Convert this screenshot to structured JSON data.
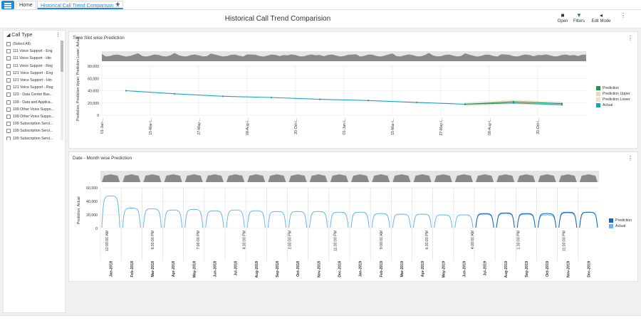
{
  "tabs": {
    "home": "Home",
    "active": "Historical Call Trend Comparison",
    "close": "✕",
    "add": "+"
  },
  "page": {
    "title": "Historical Call Trend Comparision"
  },
  "toolbar": {
    "open": "Open",
    "filters": "Filters",
    "edit_mode": "Edit Mode",
    "more": "⋮"
  },
  "filter_panel": {
    "title": "Call Type",
    "items": [
      "(Select All)",
      "111 Voice Support - Eng",
      "111 Voice Support - Hin",
      "111 Voice Support - Reg",
      "121 Voice Support - Eng",
      "121 Voice Support - Hin",
      "121 Voice Support - Reg",
      "123 - Data Center Bas...",
      "199 - Data and Applica...",
      "199 Other Voice Suppo...",
      "199 Other Voice Suppo...",
      "199 Subscription Servi...",
      "199 Subscription Servi...",
      "199 Subscription Servi..."
    ]
  },
  "chart_data": [
    {
      "type": "line",
      "title": "Time Slot wise Prediction",
      "ylabel": "Prediction, Prediction Upper, Prediction Lower, Actual",
      "ylim": [
        0,
        80000
      ],
      "yticks": [
        "80,000",
        "60,000",
        "40,000",
        "20,000",
        "0"
      ],
      "x": [
        "01-Jan-...",
        "15-Mar-l...",
        "27-May-...",
        "08-Aug-l...",
        "20-Oct-l...",
        "01-Jan-l...",
        "15-Mar-l...",
        "27-May-l...",
        "08-Aug-l...",
        "20-Oct-l..."
      ],
      "series": [
        {
          "name": "Prediction",
          "color": "#1a9850",
          "values": [
            null,
            null,
            null,
            null,
            null,
            null,
            null,
            18000,
            22000,
            19000
          ]
        },
        {
          "name": "Prediction Upper",
          "color": "#e8d9b5",
          "values": [
            null,
            null,
            null,
            null,
            null,
            null,
            null,
            21000,
            25000,
            22000
          ]
        },
        {
          "name": "Prediction Lower",
          "color": "#eee0c4",
          "values": [
            null,
            null,
            null,
            null,
            null,
            null,
            null,
            15000,
            18000,
            16000
          ]
        },
        {
          "name": "Actual",
          "color": "#17a2c8",
          "values": [
            40000,
            35000,
            31000,
            29000,
            26000,
            24000,
            21000,
            18000,
            20000,
            17000
          ]
        }
      ]
    },
    {
      "type": "line",
      "title": "Date - Month wise Prediction",
      "ylabel": "Prediction, Actual",
      "ylim": [
        0,
        60000
      ],
      "yticks": [
        "60,000",
        "40,000",
        "20,000",
        "0"
      ],
      "time_labels": [
        "12:00:00 AM",
        "9:30:00 PM",
        "7:00:00 PM",
        "4:30:00 PM",
        "2:00:00 PM",
        "11:30:00 PM",
        "9:00:00 AM",
        "6:30:00 PM",
        "4:00:00 AM",
        "1:30:00 PM",
        "11:00:00 PM"
      ],
      "categories": [
        "Jan-2018",
        "Feb-2018",
        "Mar-2018",
        "Apr-2018",
        "May-2018",
        "Jun-2018",
        "Jul-2018",
        "Aug-2018",
        "Sep-2018",
        "Oct-2018",
        "Nov-2018",
        "Dec-2018",
        "Jan-2019",
        "Feb-2019",
        "Mar-2019",
        "Apr-2019",
        "May-2019",
        "Jun-2019",
        "Jul-2019",
        "Aug-2019",
        "Sep-2019",
        "Oct-2019",
        "Nov-2019",
        "Dec-2019"
      ],
      "series": [
        {
          "name": "Prediction",
          "color": "#1565c0",
          "values": [
            null,
            null,
            null,
            null,
            null,
            null,
            null,
            null,
            null,
            null,
            null,
            null,
            null,
            null,
            null,
            null,
            null,
            null,
            22000,
            23000,
            22000,
            22000,
            24000,
            24000
          ]
        },
        {
          "name": "Actual",
          "color": "#64b5f6",
          "values": [
            48000,
            30000,
            29000,
            27000,
            28000,
            26000,
            27000,
            26000,
            25000,
            25000,
            25000,
            24000,
            24000,
            22000,
            21000,
            21000,
            20000,
            20000,
            21000,
            22000,
            21000,
            20000,
            23000,
            24000
          ]
        }
      ]
    }
  ]
}
